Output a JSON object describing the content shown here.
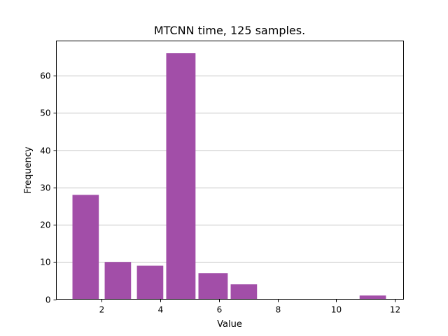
{
  "chart_data": {
    "type": "bar",
    "title": "MTCNN time, 125 samples.",
    "xlabel": "Value",
    "ylabel": "Frequency",
    "xlim": [
      0.45,
      12.3
    ],
    "ylim": [
      0,
      69.3
    ],
    "xticks": [
      2,
      4,
      6,
      8,
      10,
      12
    ],
    "yticks": [
      0,
      10,
      20,
      30,
      40,
      50,
      60
    ],
    "grid": {
      "y": true,
      "x": false
    },
    "bar_color": "#a24ea8",
    "bins": [
      {
        "x0": 1.0,
        "x1": 1.9,
        "value": 28
      },
      {
        "x0": 2.1,
        "x1": 3.0,
        "value": 10
      },
      {
        "x0": 3.2,
        "x1": 4.1,
        "value": 9
      },
      {
        "x0": 4.2,
        "x1": 5.2,
        "value": 66
      },
      {
        "x0": 5.3,
        "x1": 6.3,
        "value": 7
      },
      {
        "x0": 6.4,
        "x1": 7.3,
        "value": 4
      },
      {
        "x0": 10.8,
        "x1": 11.7,
        "value": 1
      }
    ]
  }
}
